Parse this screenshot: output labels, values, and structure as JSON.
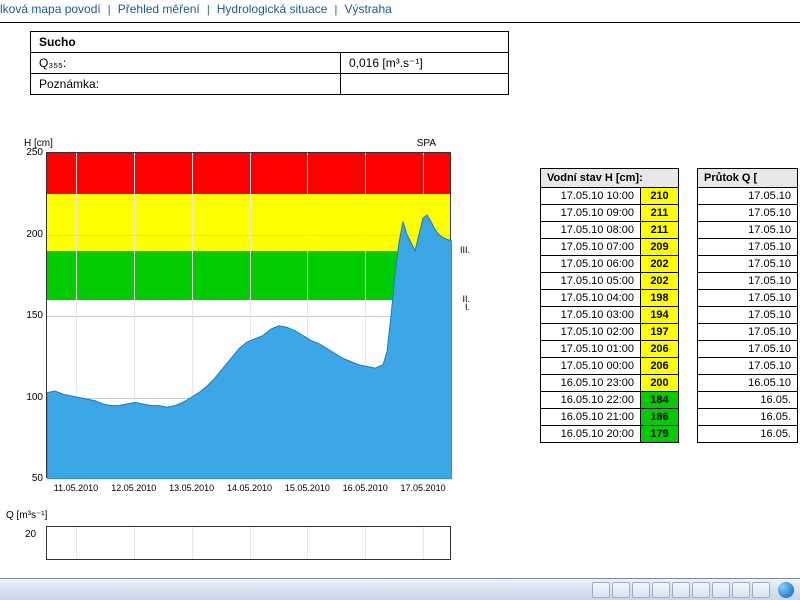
{
  "nav": {
    "item1": "lková mapa povodí",
    "item2": "Přehled měření",
    "item3": "Hydrologická situace",
    "item4": "Výstraha",
    "sep": "|"
  },
  "info": {
    "header": "Sucho",
    "row1_label": "Q₃₅₅:",
    "row1_value": "0,016 [m³.s⁻¹]",
    "row2_label": "Poznámka:",
    "row2_value": ""
  },
  "chart": {
    "ylabel": "H [cm]",
    "topright": "SPA",
    "ylim": [
      50,
      250
    ],
    "yticks": [
      50,
      100,
      150,
      200,
      250
    ],
    "xticks": [
      "11.05.2010",
      "12.05.2010",
      "13.05.2010",
      "14.05.2010",
      "15.05.2010",
      "16.05.2010",
      "17.05.2010"
    ],
    "zones": [
      {
        "from": 225,
        "to": 250,
        "class": "zone-red",
        "label": ""
      },
      {
        "from": 190,
        "to": 225,
        "class": "zone-yellow",
        "label": "III."
      },
      {
        "from": 160,
        "to": 190,
        "class": "zone-green",
        "label": "II."
      }
    ],
    "zone_i_label": "I.",
    "zone_i_at": 160,
    "series": [
      [
        0,
        103
      ],
      [
        8,
        104
      ],
      [
        16,
        102
      ],
      [
        24,
        101
      ],
      [
        32,
        100
      ],
      [
        40,
        99
      ],
      [
        48,
        98
      ],
      [
        56,
        96
      ],
      [
        64,
        95
      ],
      [
        72,
        95
      ],
      [
        80,
        96
      ],
      [
        88,
        97
      ],
      [
        96,
        96
      ],
      [
        104,
        95
      ],
      [
        112,
        95
      ],
      [
        120,
        94
      ],
      [
        128,
        95
      ],
      [
        136,
        97
      ],
      [
        144,
        100
      ],
      [
        152,
        103
      ],
      [
        160,
        107
      ],
      [
        168,
        112
      ],
      [
        176,
        118
      ],
      [
        184,
        124
      ],
      [
        192,
        130
      ],
      [
        200,
        134
      ],
      [
        208,
        136
      ],
      [
        216,
        138
      ],
      [
        224,
        142
      ],
      [
        232,
        144
      ],
      [
        240,
        143
      ],
      [
        248,
        141
      ],
      [
        256,
        138
      ],
      [
        264,
        135
      ],
      [
        272,
        133
      ],
      [
        280,
        130
      ],
      [
        288,
        127
      ],
      [
        296,
        124
      ],
      [
        304,
        122
      ],
      [
        312,
        120
      ],
      [
        320,
        119
      ],
      [
        328,
        118
      ],
      [
        336,
        120
      ],
      [
        340,
        128
      ],
      [
        344,
        150
      ],
      [
        348,
        175
      ],
      [
        352,
        195
      ],
      [
        356,
        208
      ],
      [
        360,
        200
      ],
      [
        364,
        195
      ],
      [
        368,
        190
      ],
      [
        372,
        200
      ],
      [
        376,
        210
      ],
      [
        380,
        212
      ],
      [
        384,
        208
      ],
      [
        388,
        203
      ],
      [
        392,
        200
      ],
      [
        396,
        198
      ],
      [
        400,
        197
      ],
      [
        405,
        196
      ]
    ],
    "fill_color": "#3ba7e6",
    "grid_color": "#cccccc"
  },
  "mini": {
    "ylabel": "Q [m³s⁻¹]",
    "ytick": "20"
  },
  "tableH": {
    "header": "Vodní stav H  [cm]:",
    "rows": [
      {
        "t": "17.05.10 10:00",
        "v": "210",
        "c": "val-yellow"
      },
      {
        "t": "17.05.10 09:00",
        "v": "211",
        "c": "val-yellow"
      },
      {
        "t": "17.05.10 08:00",
        "v": "211",
        "c": "val-yellow"
      },
      {
        "t": "17.05.10 07:00",
        "v": "209",
        "c": "val-yellow"
      },
      {
        "t": "17.05.10 06:00",
        "v": "202",
        "c": "val-yellow"
      },
      {
        "t": "17.05.10 05:00",
        "v": "202",
        "c": "val-yellow"
      },
      {
        "t": "17.05.10 04:00",
        "v": "198",
        "c": "val-yellow"
      },
      {
        "t": "17.05.10 03:00",
        "v": "194",
        "c": "val-yellow"
      },
      {
        "t": "17.05.10 02:00",
        "v": "197",
        "c": "val-yellow"
      },
      {
        "t": "17.05.10 01:00",
        "v": "206",
        "c": "val-yellow"
      },
      {
        "t": "17.05.10 00:00",
        "v": "206",
        "c": "val-yellow"
      },
      {
        "t": "16.05.10 23:00",
        "v": "200",
        "c": "val-yellow"
      },
      {
        "t": "16.05.10 22:00",
        "v": "184",
        "c": "val-green"
      },
      {
        "t": "16.05.10 21:00",
        "v": "186",
        "c": "val-green"
      },
      {
        "t": "16.05.10 20:00",
        "v": "179",
        "c": "val-green"
      }
    ]
  },
  "tableQ": {
    "header": "Průtok Q [",
    "rows": [
      {
        "t": "17.05.10"
      },
      {
        "t": "17.05.10"
      },
      {
        "t": "17.05.10"
      },
      {
        "t": "17.05.10"
      },
      {
        "t": "17.05.10"
      },
      {
        "t": "17.05.10"
      },
      {
        "t": "17.05.10"
      },
      {
        "t": "17.05.10"
      },
      {
        "t": "17.05.10"
      },
      {
        "t": "17.05.10"
      },
      {
        "t": "17.05.10"
      },
      {
        "t": "16.05.10"
      },
      {
        "t": "16.05."
      },
      {
        "t": "16.05."
      },
      {
        "t": "16.05."
      }
    ]
  }
}
